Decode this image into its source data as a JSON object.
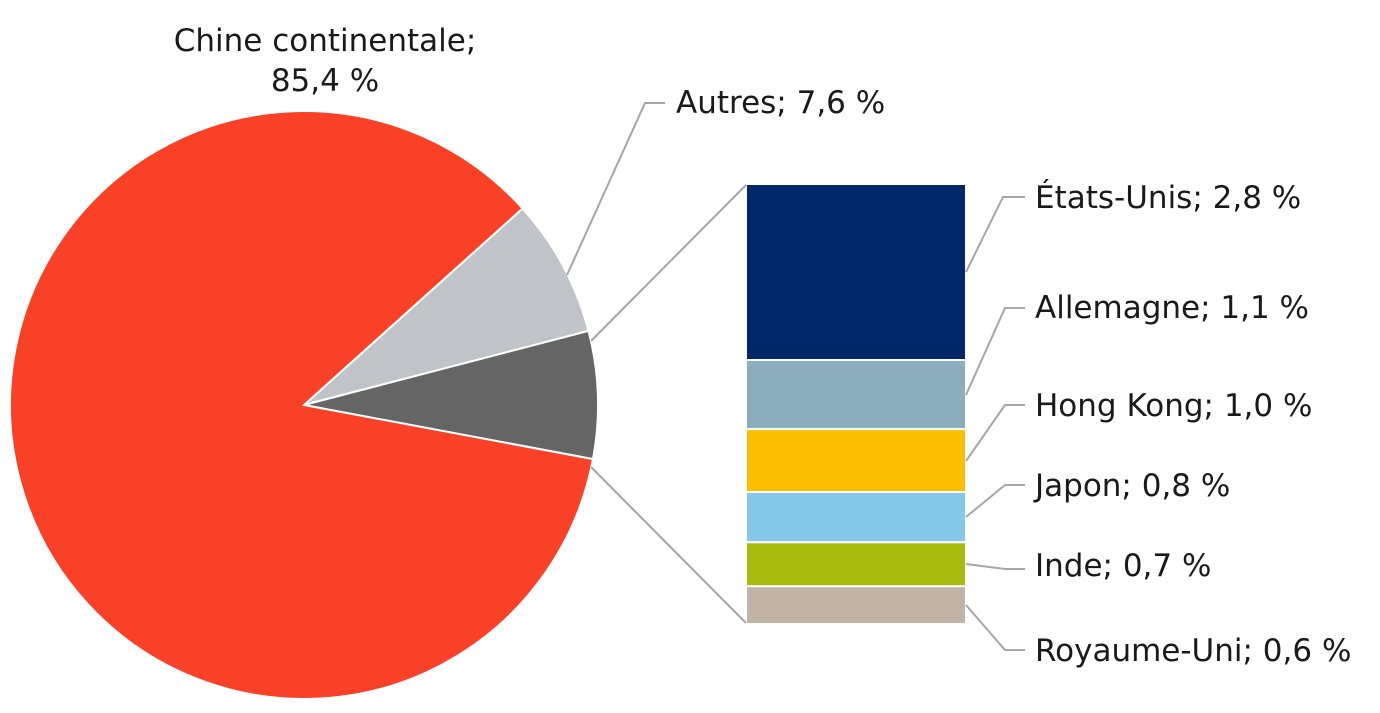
{
  "chart_data": {
    "type": "pie",
    "title": "",
    "slices": [
      {
        "label": "Chine continentale",
        "value": 85.4,
        "display": "85,4 %",
        "color": "#f84127"
      },
      {
        "label": "Autres",
        "value": 7.6,
        "display": "7,6 %",
        "color": "#c0c4c8"
      },
      {
        "label": "",
        "value": 7.0,
        "color": "#656565"
      }
    ],
    "breakdown": {
      "type": "bar",
      "stacked": true,
      "items": [
        {
          "label": "États-Unis",
          "value": 2.8,
          "display": "2,8 %",
          "color": "#012868"
        },
        {
          "label": "Allemagne",
          "value": 1.1,
          "display": "1,1 %",
          "color": "#8aaebe"
        },
        {
          "label": "Hong Kong",
          "value": 1.0,
          "display": "1,0 %",
          "color": "#fdbe00"
        },
        {
          "label": "Japon",
          "value": 0.8,
          "display": "0,8 %",
          "color": "#86c8e9"
        },
        {
          "label": "Inde",
          "value": 0.7,
          "display": "0,7 %",
          "color": "#a8ba0b"
        },
        {
          "label": "Royaume-Uni",
          "value": 0.6,
          "display": "0,6 %",
          "color": "#c1b4a6"
        }
      ]
    },
    "labels": {
      "main_line1": "Chine continentale;",
      "main_line2": "85,4 %",
      "others": "Autres; 7,6 %",
      "us": "États-Unis; 2,8 %",
      "de": "Allemagne; 1,1 %",
      "hk": "Hong Kong; 1,0 %",
      "jp": "Japon; 0,8 %",
      "in": "Inde; 0,7 %",
      "uk": "Royaume-Uni; 0,6 %"
    }
  }
}
